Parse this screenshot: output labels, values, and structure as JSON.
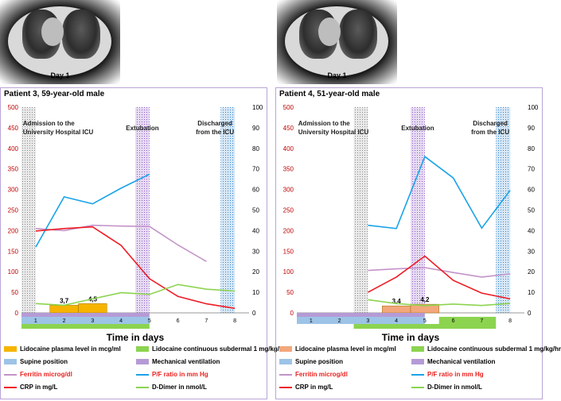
{
  "ct_images": [
    {
      "label": "Day 1"
    },
    {
      "label": "Day 1"
    }
  ],
  "colors": {
    "ferritin": "#e8211e",
    "pf": "#1aa3e8",
    "crp": "#ee1c25",
    "ddimer": "#8cd450",
    "lidocaine_plasma": "#f6b400",
    "lidocaine_plasma_p4": "#f3a77c",
    "lidocaine_cont": "#8cd450",
    "supine": "#9dc3e6",
    "mech": "#b59bd6",
    "ferritin_line": "#c493c9"
  },
  "chart_data": [
    {
      "type": "line",
      "title": "Patient 3, 59-year-old male",
      "xlabel": "Time in days",
      "ylim_left": [
        0,
        500
      ],
      "ylim_right": [
        0,
        100
      ],
      "left_ticks": [
        "0",
        "50",
        "100",
        "150",
        "200",
        "250",
        "300",
        "350",
        "400",
        "450",
        "500"
      ],
      "right_ticks": [
        "0",
        "10",
        "20",
        "30",
        "40",
        "50",
        "60",
        "70",
        "80",
        "90",
        "100"
      ],
      "day_labels": [
        "1",
        "2",
        "3",
        "4",
        "5",
        "6",
        "7",
        "8"
      ],
      "annotations": {
        "admission": [
          "Admission to the",
          "University Hospital ICU"
        ],
        "extubation": [
          "Extubation"
        ],
        "discharged": [
          "Discharged",
          "from the ICU"
        ]
      },
      "series": [
        {
          "name": "Ferritin microg/dl",
          "axis": "left",
          "key": "ferritin_line",
          "x": [
            1,
            2,
            3,
            4,
            5,
            6,
            7
          ],
          "values": [
            205,
            200,
            213,
            211,
            210,
            165,
            125
          ]
        },
        {
          "name": "P/F ratio in mm Hg",
          "axis": "left",
          "key": "pf",
          "x": [
            1,
            2,
            3,
            4,
            5
          ],
          "values": [
            160,
            282,
            265,
            303,
            337
          ]
        },
        {
          "name": "CRP in mg/L",
          "axis": "left",
          "key": "crp",
          "x": [
            1,
            2,
            3,
            4,
            5,
            6,
            7,
            8
          ],
          "values": [
            199,
            205,
            209,
            164,
            83,
            40,
            22,
            11
          ]
        },
        {
          "name": "D-Dimer in nmol/L",
          "axis": "right",
          "key": "ddimer",
          "x": [
            1,
            2,
            3,
            4,
            5,
            6,
            7,
            8
          ],
          "values": [
            4.5,
            3.7,
            6.8,
            9.8,
            9.0,
            13.8,
            11.5,
            10.6
          ]
        }
      ],
      "plasma_bars": [
        {
          "day": 2,
          "value": 3.7,
          "label": "3,7"
        },
        {
          "day": 3,
          "value": 4.5,
          "label": "4,5"
        }
      ],
      "shaded": {
        "admission": [
          0.5,
          1
        ],
        "extubation": [
          4.5,
          5
        ],
        "discharge": [
          7.5,
          8
        ]
      },
      "bands": {
        "mech": [
          0.5,
          5
        ],
        "supine": [
          0.5,
          5
        ],
        "cont": [
          0.5,
          5
        ]
      }
    },
    {
      "type": "line",
      "title": "Patient 4, 51-year-old male",
      "xlabel": "Time in days",
      "ylim_left": [
        0,
        500
      ],
      "ylim_right": [
        0,
        100
      ],
      "left_ticks": [
        "0",
        "50",
        "100",
        "150",
        "200",
        "250",
        "300",
        "350",
        "400",
        "450",
        "500"
      ],
      "right_ticks": [
        "0",
        "10",
        "20",
        "30",
        "40",
        "50",
        "60",
        "70",
        "80",
        "90",
        "100"
      ],
      "day_labels": [
        "1",
        "2",
        "3",
        "4",
        "5",
        "6",
        "7",
        "8"
      ],
      "annotations": {
        "admission": [
          "Admission to the",
          "University Hospital ICU"
        ],
        "extubation": [
          "Extubation"
        ],
        "discharged": [
          "Discharged",
          "from the ICU"
        ]
      },
      "series": [
        {
          "name": "Ferritin microg/dl",
          "axis": "left",
          "key": "ferritin_line",
          "x": [
            3,
            4,
            5,
            6,
            7,
            8
          ],
          "values": [
            103,
            107,
            110,
            98,
            87,
            95
          ]
        },
        {
          "name": "P/F ratio in mm Hg",
          "axis": "left",
          "key": "pf",
          "x": [
            3,
            4,
            5,
            6,
            7,
            8
          ],
          "values": [
            213,
            205,
            380,
            328,
            206,
            298
          ]
        },
        {
          "name": "CRP in mg/L",
          "axis": "left",
          "key": "crp",
          "x": [
            3,
            4,
            5,
            6,
            7,
            8
          ],
          "values": [
            50,
            87,
            138,
            79,
            48,
            34
          ]
        },
        {
          "name": "D-Dimer in nmol/L",
          "axis": "right",
          "key": "ddimer",
          "x": [
            3,
            4,
            5,
            6,
            7,
            8
          ],
          "values": [
            6.4,
            4.5,
            3.5,
            4.3,
            3.6,
            4.6
          ]
        }
      ],
      "plasma_bars": [
        {
          "day": 4,
          "value": 3.4,
          "label": "3,4"
        },
        {
          "day": 5,
          "value": 4.2,
          "label": "4,2"
        }
      ],
      "shaded": {
        "admission": [
          2.5,
          3
        ],
        "extubation": [
          4.5,
          5
        ],
        "discharge": [
          7.5,
          8
        ]
      },
      "bands": {
        "mech": [
          0.5,
          5
        ],
        "supine": [
          0.5,
          5
        ],
        "cont": [
          2.5,
          7
        ]
      }
    }
  ],
  "legend": [
    {
      "label": "Lidocaine plasma level in mcg/ml",
      "kind": "swatch",
      "key": "lidocaine_plasma"
    },
    {
      "label": "Lidocaine continuous subdermal 1 mg/kg/hr",
      "kind": "swatch",
      "key": "lidocaine_cont"
    },
    {
      "label": "Supine position",
      "kind": "swatch",
      "key": "supine"
    },
    {
      "label": "Mechanical ventilation",
      "kind": "swatch",
      "key": "mech"
    },
    {
      "label": "Ferritin microg/dl",
      "kind": "line",
      "key": "ferritin_line"
    },
    {
      "label": "P/F ratio in mm Hg",
      "kind": "line",
      "key": "pf"
    },
    {
      "label": "CRP in mg/L",
      "kind": "line",
      "key": "crp"
    },
    {
      "label": "D-Dimer in nmol/L",
      "kind": "line",
      "key": "ddimer"
    }
  ]
}
